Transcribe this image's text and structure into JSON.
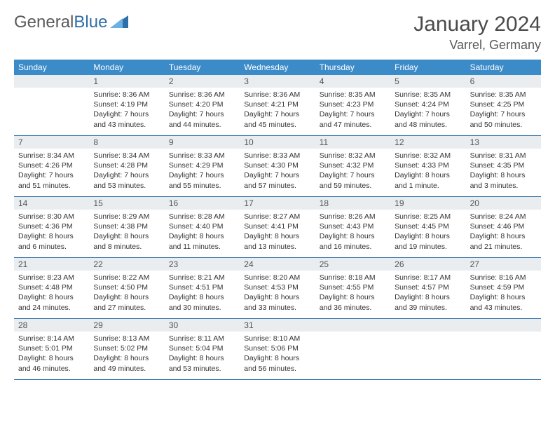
{
  "logo": {
    "word1": "General",
    "word2": "Blue"
  },
  "title": "January 2024",
  "location": "Varrel, Germany",
  "colors": {
    "header_bg": "#3b8bc9",
    "accent": "#2f6fa7",
    "daynum_bg": "#e9edf0",
    "text": "#333333",
    "muted": "#5a5a5a",
    "white": "#ffffff"
  },
  "days_of_week": [
    "Sunday",
    "Monday",
    "Tuesday",
    "Wednesday",
    "Thursday",
    "Friday",
    "Saturday"
  ],
  "weeks": [
    [
      {},
      {
        "n": "1",
        "sunrise": "8:36 AM",
        "sunset": "4:19 PM",
        "daylight": "7 hours and 43 minutes."
      },
      {
        "n": "2",
        "sunrise": "8:36 AM",
        "sunset": "4:20 PM",
        "daylight": "7 hours and 44 minutes."
      },
      {
        "n": "3",
        "sunrise": "8:36 AM",
        "sunset": "4:21 PM",
        "daylight": "7 hours and 45 minutes."
      },
      {
        "n": "4",
        "sunrise": "8:35 AM",
        "sunset": "4:23 PM",
        "daylight": "7 hours and 47 minutes."
      },
      {
        "n": "5",
        "sunrise": "8:35 AM",
        "sunset": "4:24 PM",
        "daylight": "7 hours and 48 minutes."
      },
      {
        "n": "6",
        "sunrise": "8:35 AM",
        "sunset": "4:25 PM",
        "daylight": "7 hours and 50 minutes."
      }
    ],
    [
      {
        "n": "7",
        "sunrise": "8:34 AM",
        "sunset": "4:26 PM",
        "daylight": "7 hours and 51 minutes."
      },
      {
        "n": "8",
        "sunrise": "8:34 AM",
        "sunset": "4:28 PM",
        "daylight": "7 hours and 53 minutes."
      },
      {
        "n": "9",
        "sunrise": "8:33 AM",
        "sunset": "4:29 PM",
        "daylight": "7 hours and 55 minutes."
      },
      {
        "n": "10",
        "sunrise": "8:33 AM",
        "sunset": "4:30 PM",
        "daylight": "7 hours and 57 minutes."
      },
      {
        "n": "11",
        "sunrise": "8:32 AM",
        "sunset": "4:32 PM",
        "daylight": "7 hours and 59 minutes."
      },
      {
        "n": "12",
        "sunrise": "8:32 AM",
        "sunset": "4:33 PM",
        "daylight": "8 hours and 1 minute."
      },
      {
        "n": "13",
        "sunrise": "8:31 AM",
        "sunset": "4:35 PM",
        "daylight": "8 hours and 3 minutes."
      }
    ],
    [
      {
        "n": "14",
        "sunrise": "8:30 AM",
        "sunset": "4:36 PM",
        "daylight": "8 hours and 6 minutes."
      },
      {
        "n": "15",
        "sunrise": "8:29 AM",
        "sunset": "4:38 PM",
        "daylight": "8 hours and 8 minutes."
      },
      {
        "n": "16",
        "sunrise": "8:28 AM",
        "sunset": "4:40 PM",
        "daylight": "8 hours and 11 minutes."
      },
      {
        "n": "17",
        "sunrise": "8:27 AM",
        "sunset": "4:41 PM",
        "daylight": "8 hours and 13 minutes."
      },
      {
        "n": "18",
        "sunrise": "8:26 AM",
        "sunset": "4:43 PM",
        "daylight": "8 hours and 16 minutes."
      },
      {
        "n": "19",
        "sunrise": "8:25 AM",
        "sunset": "4:45 PM",
        "daylight": "8 hours and 19 minutes."
      },
      {
        "n": "20",
        "sunrise": "8:24 AM",
        "sunset": "4:46 PM",
        "daylight": "8 hours and 21 minutes."
      }
    ],
    [
      {
        "n": "21",
        "sunrise": "8:23 AM",
        "sunset": "4:48 PM",
        "daylight": "8 hours and 24 minutes."
      },
      {
        "n": "22",
        "sunrise": "8:22 AM",
        "sunset": "4:50 PM",
        "daylight": "8 hours and 27 minutes."
      },
      {
        "n": "23",
        "sunrise": "8:21 AM",
        "sunset": "4:51 PM",
        "daylight": "8 hours and 30 minutes."
      },
      {
        "n": "24",
        "sunrise": "8:20 AM",
        "sunset": "4:53 PM",
        "daylight": "8 hours and 33 minutes."
      },
      {
        "n": "25",
        "sunrise": "8:18 AM",
        "sunset": "4:55 PM",
        "daylight": "8 hours and 36 minutes."
      },
      {
        "n": "26",
        "sunrise": "8:17 AM",
        "sunset": "4:57 PM",
        "daylight": "8 hours and 39 minutes."
      },
      {
        "n": "27",
        "sunrise": "8:16 AM",
        "sunset": "4:59 PM",
        "daylight": "8 hours and 43 minutes."
      }
    ],
    [
      {
        "n": "28",
        "sunrise": "8:14 AM",
        "sunset": "5:01 PM",
        "daylight": "8 hours and 46 minutes."
      },
      {
        "n": "29",
        "sunrise": "8:13 AM",
        "sunset": "5:02 PM",
        "daylight": "8 hours and 49 minutes."
      },
      {
        "n": "30",
        "sunrise": "8:11 AM",
        "sunset": "5:04 PM",
        "daylight": "8 hours and 53 minutes."
      },
      {
        "n": "31",
        "sunrise": "8:10 AM",
        "sunset": "5:06 PM",
        "daylight": "8 hours and 56 minutes."
      },
      {},
      {},
      {}
    ]
  ],
  "labels": {
    "sunrise": "Sunrise:",
    "sunset": "Sunset:",
    "daylight": "Daylight:"
  },
  "typography": {
    "title_fontsize": 30,
    "location_fontsize": 18,
    "dow_fontsize": 12,
    "daynum_fontsize": 12,
    "body_fontsize": 10.5
  }
}
